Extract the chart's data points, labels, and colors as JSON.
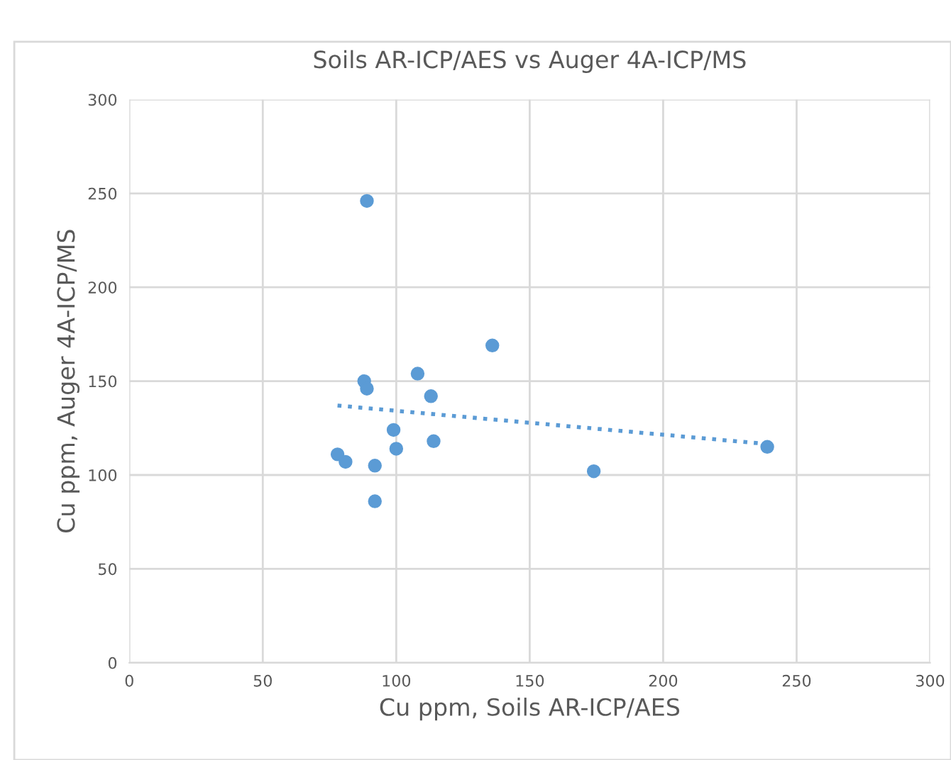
{
  "chart_data": {
    "type": "scatter",
    "title": "Soils AR-ICP/AES vs Auger 4A-ICP/MS",
    "xlabel": "Cu ppm, Soils AR-ICP/AES",
    "ylabel": "Cu ppm, Auger 4A-ICP/MS",
    "xlim": [
      0,
      300
    ],
    "ylim": [
      0,
      300
    ],
    "xticks": [
      0,
      50,
      100,
      150,
      200,
      250,
      300
    ],
    "yticks": [
      0,
      50,
      100,
      150,
      200,
      250,
      300
    ],
    "grid": true,
    "legend": false,
    "series": [
      {
        "marker": "circle",
        "color": "#5b9bd5",
        "x": [
          89,
          136,
          88,
          89,
          108,
          113,
          99,
          100,
          114,
          78,
          81,
          92,
          92,
          174,
          239
        ],
        "values": [
          246,
          169,
          150,
          146,
          154,
          142,
          124,
          114,
          118,
          111,
          107,
          105,
          86,
          102,
          115
        ]
      },
      {
        "type": "line",
        "marker": "none",
        "line_style": "dotted",
        "color": "#5b9bd5",
        "x": [
          78,
          239
        ],
        "values": [
          137,
          116.5
        ]
      }
    ]
  }
}
